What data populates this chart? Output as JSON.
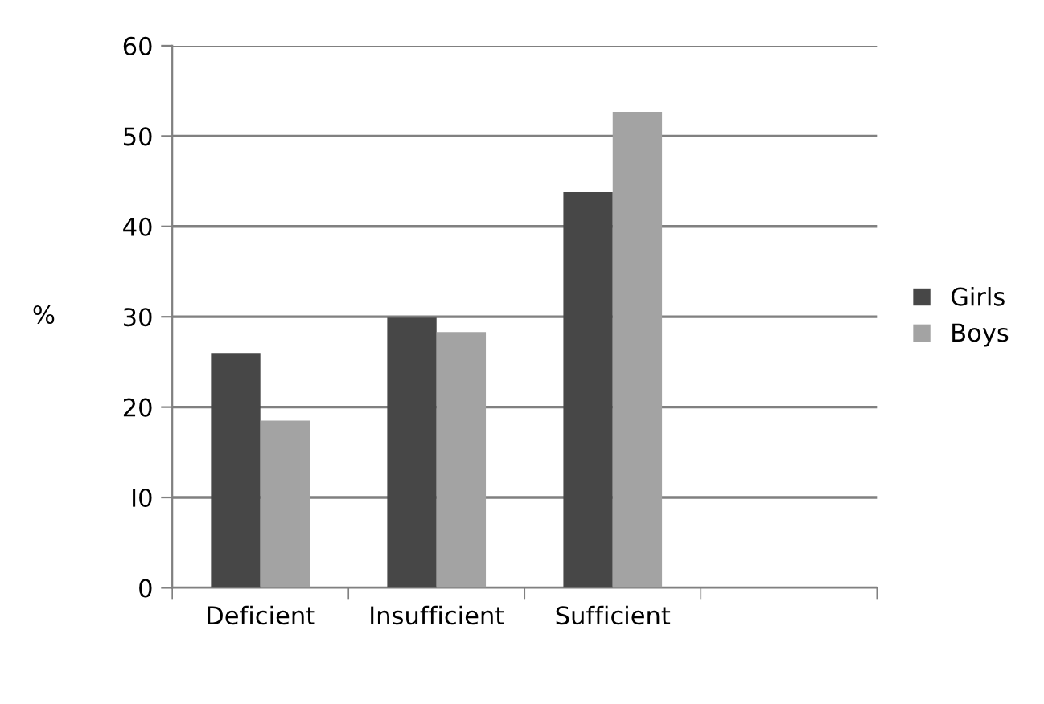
{
  "chart_data": {
    "type": "bar",
    "ylabel": "%",
    "categories": [
      "Deficient",
      "Insufficient",
      "Sufficient",
      null
    ],
    "series": [
      {
        "name": "Girls",
        "color": "#474747",
        "values": [
          26.0,
          29.9,
          43.8,
          null
        ]
      },
      {
        "name": "Boys",
        "color": "#a3a3a3",
        "values": [
          18.5,
          28.3,
          52.7,
          null
        ]
      }
    ],
    "ylim": [
      0,
      60
    ],
    "yticks": [
      0,
      {
        "value": 10,
        "label": "I0"
      },
      20,
      30,
      40,
      50,
      60
    ],
    "grid": "y",
    "legend": "right"
  }
}
